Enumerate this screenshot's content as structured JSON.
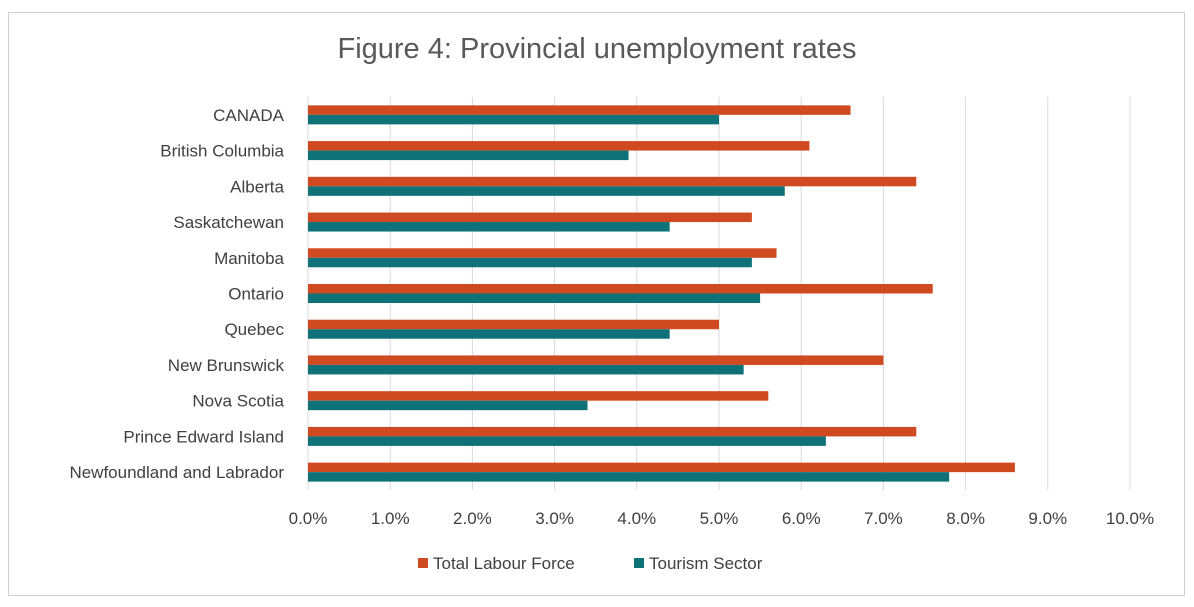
{
  "chart_data": {
    "type": "bar",
    "orientation": "horizontal",
    "title": "Figure 4: Provincial unemployment rates",
    "categories": [
      "CANADA",
      "British Columbia",
      "Alberta",
      "Saskatchewan",
      "Manitoba",
      "Ontario",
      "Quebec",
      "New Brunswick",
      "Nova Scotia",
      "Prince Edward Island",
      "Newfoundland and Labrador"
    ],
    "series": [
      {
        "name": "Total Labour Force",
        "color": "#D04A21",
        "values": [
          6.6,
          6.1,
          7.4,
          5.4,
          5.7,
          7.6,
          5.0,
          7.0,
          5.6,
          7.4,
          8.6
        ]
      },
      {
        "name": "Tourism Sector",
        "color": "#0F7279",
        "values": [
          5.0,
          3.9,
          5.8,
          4.4,
          5.4,
          5.5,
          4.4,
          5.3,
          3.4,
          6.3,
          7.8
        ]
      }
    ],
    "xlim": [
      0,
      10
    ],
    "xticks": [
      "0.0%",
      "1.0%",
      "2.0%",
      "3.0%",
      "4.0%",
      "5.0%",
      "6.0%",
      "7.0%",
      "8.0%",
      "9.0%",
      "10.0%"
    ],
    "grid": "vertical",
    "legend_position": "bottom"
  }
}
